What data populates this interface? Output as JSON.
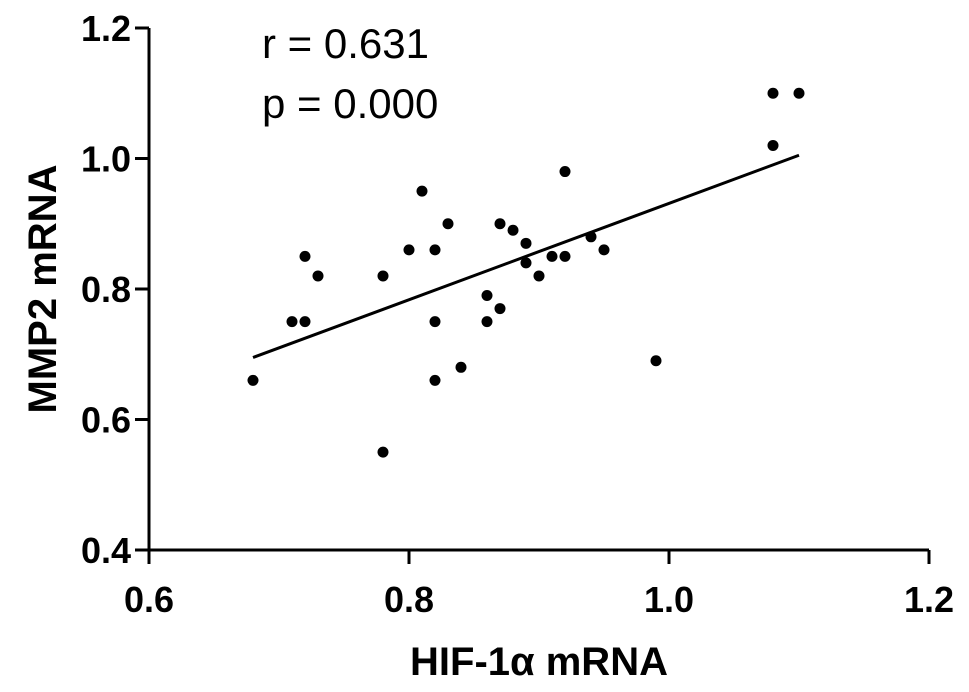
{
  "chart_data": {
    "type": "scatter",
    "xlabel": "HIF-1α mRNA",
    "ylabel": "MMP2  mRNA",
    "xlim": [
      0.6,
      1.2
    ],
    "ylim": [
      0.4,
      1.2
    ],
    "xticks": [
      0.6,
      0.8,
      1.0,
      1.2
    ],
    "yticks": [
      0.4,
      0.6,
      0.8,
      1.0,
      1.2
    ],
    "xtick_labels": [
      "0.6",
      "0.8",
      "1.0",
      "1.2"
    ],
    "ytick_labels": [
      "0.4",
      "0.6",
      "0.8",
      "1.0",
      "1.2"
    ],
    "annotations": [
      "r  = 0.631",
      "p = 0.000"
    ],
    "points": [
      [
        0.68,
        0.66
      ],
      [
        0.71,
        0.75
      ],
      [
        0.72,
        0.85
      ],
      [
        0.72,
        0.75
      ],
      [
        0.73,
        0.82
      ],
      [
        0.78,
        0.82
      ],
      [
        0.78,
        0.55
      ],
      [
        0.8,
        0.86
      ],
      [
        0.81,
        0.95
      ],
      [
        0.82,
        0.86
      ],
      [
        0.82,
        0.75
      ],
      [
        0.82,
        0.66
      ],
      [
        0.83,
        0.9
      ],
      [
        0.84,
        0.68
      ],
      [
        0.86,
        0.79
      ],
      [
        0.86,
        0.75
      ],
      [
        0.87,
        0.9
      ],
      [
        0.87,
        0.77
      ],
      [
        0.88,
        0.89
      ],
      [
        0.89,
        0.87
      ],
      [
        0.89,
        0.84
      ],
      [
        0.9,
        0.82
      ],
      [
        0.91,
        0.85
      ],
      [
        0.92,
        0.98
      ],
      [
        0.92,
        0.85
      ],
      [
        0.94,
        0.88
      ],
      [
        0.95,
        0.86
      ],
      [
        0.99,
        0.69
      ],
      [
        1.08,
        1.1
      ],
      [
        1.08,
        1.02
      ],
      [
        1.1,
        1.1
      ]
    ],
    "fit_line": {
      "x": [
        0.68,
        1.1
      ],
      "y": [
        0.695,
        1.005
      ]
    },
    "grid": false,
    "legend": false
  }
}
